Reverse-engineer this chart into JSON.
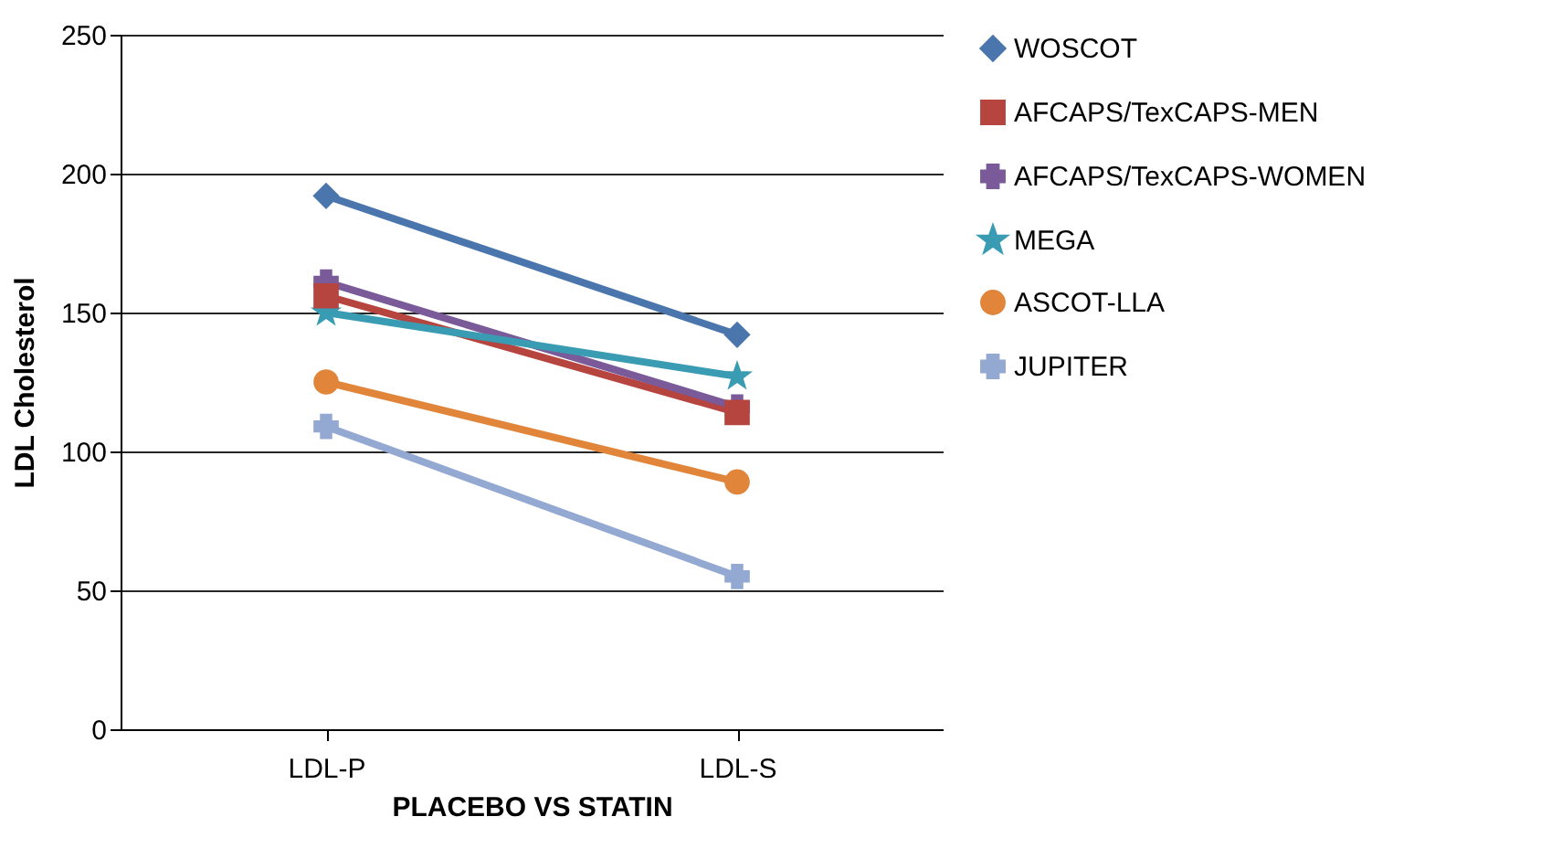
{
  "chart_data": {
    "type": "line",
    "xlabel": "PLACEBO VS STATIN",
    "ylabel": "LDL Cholesterol",
    "categories": [
      "LDL-P",
      "LDL-S"
    ],
    "series": [
      {
        "name": "WOSCOT",
        "color": "#4a76ad",
        "marker": "diamond",
        "values": [
          192,
          142
        ]
      },
      {
        "name": "AFCAPS/TexCAPS-MEN",
        "color": "#b6443f",
        "marker": "square",
        "values": [
          156,
          114
        ]
      },
      {
        "name": "AFCAPS/TexCAPS-WOMEN",
        "color": "#7a5a98",
        "marker": "cross",
        "values": [
          161,
          116
        ]
      },
      {
        "name": "MEGA",
        "color": "#3a9cb3",
        "marker": "star",
        "values": [
          150,
          127
        ]
      },
      {
        "name": "ASCOT-LLA",
        "color": "#e0853a",
        "marker": "circle",
        "values": [
          125,
          89
        ]
      },
      {
        "name": "JUPITER",
        "color": "#93a9d2",
        "marker": "cross",
        "values": [
          109,
          55
        ]
      }
    ],
    "ylim": [
      0,
      250
    ],
    "yticks": [
      0,
      50,
      100,
      150,
      200,
      250
    ],
    "grid": "y",
    "legend": "right",
    "line_style": "solid"
  }
}
